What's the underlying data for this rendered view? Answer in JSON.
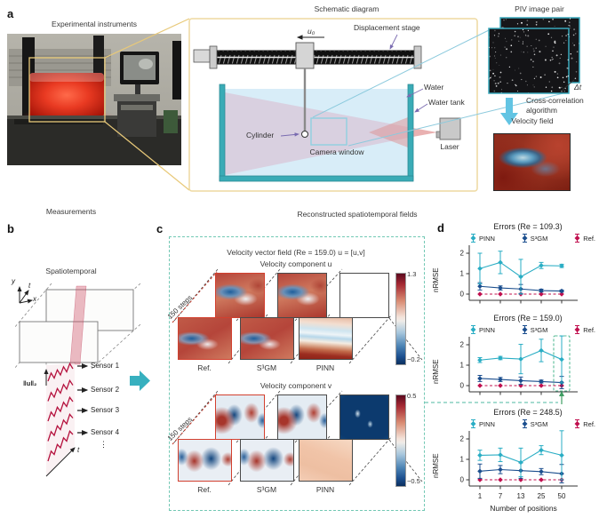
{
  "panel_a": {
    "label": "a",
    "photo_title": "Experimental instruments",
    "schematic": {
      "title": "Schematic diagram",
      "u0": "u₀",
      "displacement_stage": "Displacement stage",
      "water": "Water",
      "water_tank": "Water tank",
      "cylinder": "Cylinder",
      "camera_window": "Camera window",
      "laser": "Laser"
    },
    "piv": {
      "title": "PIV image pair",
      "delta_t": "Δt",
      "algorithm": "Cross-correlation algorithm",
      "velocity_field": "Velocity field"
    }
  },
  "panel_b": {
    "label": "b",
    "title": "Measurements",
    "subtitle": "Spatiotemporal",
    "axis_y": "y",
    "axis_t": "t",
    "axis_x": "x",
    "norm_label": "‖u‖₂",
    "sensors": [
      "Sensor 1",
      "Sensor 2",
      "Sensor 3",
      "Sensor 4"
    ],
    "more": "⋮",
    "time_label": "t"
  },
  "panel_c": {
    "label": "c",
    "title": "Reconstructed spatiotemporal fields",
    "field_title": "Velocity vector field (Re = 159.0) u = [u,v]",
    "component_u": "Velocity component u",
    "component_v": "Velocity component v",
    "steps": "150 steps",
    "methods": [
      "Ref.",
      "S³GM",
      "PINN"
    ],
    "colorbar_u": {
      "max": "1.3",
      "min": "−0.2"
    },
    "colorbar_v": {
      "max": "0.5",
      "min": "−0.5"
    }
  },
  "panel_d": {
    "label": "d"
  },
  "colors": {
    "pinn": "#29adc4",
    "s3gm": "#1b4e8e",
    "ref": "#c00f4e",
    "highlight_box": "#58bb96",
    "tank_teal": "#3aabb6",
    "yellow_frame": "#eed9a0",
    "dashed_teal": "#72c8b4",
    "sensor_red": "#b5123e"
  },
  "chart_data": [
    {
      "type": "line",
      "title": "Errors (Re = 109.3)",
      "x": [
        1,
        7,
        13,
        25,
        50
      ],
      "xlabel": "",
      "ylabel": "nRMSE",
      "yticks": [
        0,
        1,
        2
      ],
      "ylim": [
        -0.35,
        2.45
      ],
      "grid": false,
      "legend_position": "top",
      "show_xticklabels": false,
      "highlight_last": false,
      "series": [
        {
          "name": "PINN",
          "color": "#29adc4",
          "values": [
            1.25,
            1.55,
            0.85,
            1.4,
            1.38
          ],
          "errors": [
            0.75,
            0.55,
            0.85,
            0.15,
            0.08
          ]
        },
        {
          "name": "S³GM",
          "color": "#1b4e8e",
          "values": [
            0.38,
            0.3,
            0.25,
            0.17,
            0.15
          ],
          "errors": [
            0.18,
            0.1,
            0.22,
            0.07,
            0.05
          ]
        },
        {
          "name": "Ref.",
          "color": "#c00f4e",
          "values": [
            0,
            0,
            0,
            0,
            0
          ],
          "errors": [
            0,
            0,
            0,
            0,
            0
          ],
          "dashed": true
        }
      ]
    },
    {
      "type": "line",
      "title": "Errors (Re = 159.0)",
      "x": [
        1,
        7,
        13,
        25,
        50
      ],
      "xlabel": "",
      "ylabel": "nRMSE",
      "yticks": [
        0,
        1,
        2
      ],
      "ylim": [
        -0.35,
        2.45
      ],
      "grid": false,
      "legend_position": "top",
      "show_xticklabels": false,
      "highlight_last": true,
      "series": [
        {
          "name": "PINN",
          "color": "#29adc4",
          "values": [
            1.25,
            1.35,
            1.3,
            1.72,
            1.28
          ],
          "errors": [
            0.12,
            0.08,
            0.72,
            0.55,
            1.15
          ]
        },
        {
          "name": "S³GM",
          "color": "#1b4e8e",
          "values": [
            0.35,
            0.3,
            0.24,
            0.2,
            0.15
          ],
          "errors": [
            0.15,
            0.1,
            0.18,
            0.07,
            0.3
          ]
        },
        {
          "name": "Ref.",
          "color": "#c00f4e",
          "values": [
            0,
            0,
            0,
            0,
            0
          ],
          "errors": [
            0,
            0,
            0,
            0,
            0
          ],
          "dashed": true
        }
      ]
    },
    {
      "type": "line",
      "title": "Errors (Re = 248.5)",
      "x": [
        1,
        7,
        13,
        25,
        50
      ],
      "xlabel": "Number of positions",
      "ylabel": "nRMSE",
      "yticks": [
        0,
        1,
        2
      ],
      "ylim": [
        -0.35,
        2.45
      ],
      "grid": false,
      "legend_position": "top",
      "show_xticklabels": true,
      "highlight_last": false,
      "series": [
        {
          "name": "PINN",
          "color": "#29adc4",
          "values": [
            1.2,
            1.22,
            0.85,
            1.45,
            1.2
          ],
          "errors": [
            0.25,
            0.33,
            0.7,
            0.22,
            1.2
          ]
        },
        {
          "name": "S³GM",
          "color": "#1b4e8e",
          "values": [
            0.42,
            0.5,
            0.45,
            0.4,
            0.3
          ],
          "errors": [
            0.35,
            0.2,
            0.38,
            0.15,
            0.45
          ]
        },
        {
          "name": "Ref.",
          "color": "#c00f4e",
          "values": [
            0,
            0,
            0,
            0,
            0
          ],
          "errors": [
            0,
            0,
            0,
            0,
            0
          ],
          "dashed": true
        }
      ]
    }
  ]
}
